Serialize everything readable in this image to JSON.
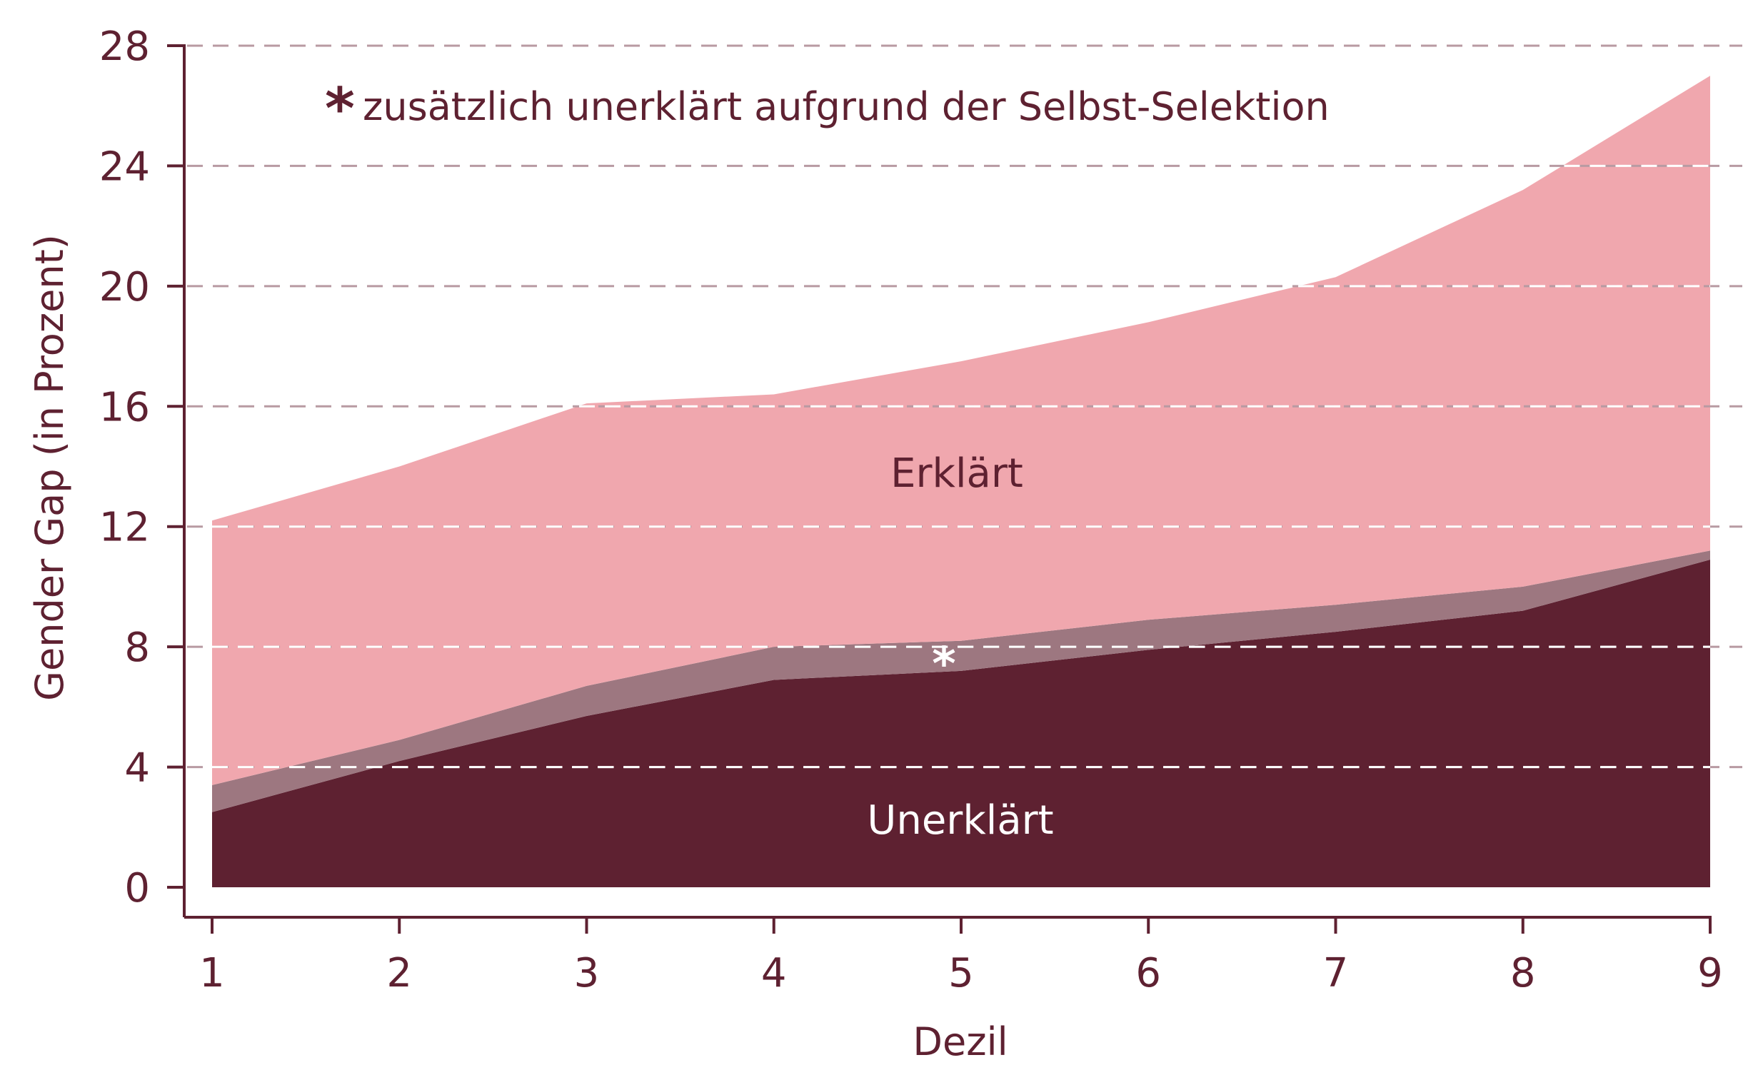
{
  "colors": {
    "dark": "#5e2131",
    "mid": "#9d7780",
    "pink": "#f0a7ae",
    "gridline": "#b89aa2",
    "white": "#ffffff"
  },
  "chart_data": {
    "type": "area",
    "title": "",
    "xlabel": "Dezil",
    "ylabel": "Gender Gap (in Prozent)",
    "x": [
      1,
      2,
      3,
      4,
      5,
      6,
      7,
      8,
      9
    ],
    "xticks": [
      "1",
      "2",
      "3",
      "4",
      "5",
      "6",
      "7",
      "8",
      "9"
    ],
    "yticks": [
      "0",
      "4",
      "8",
      "12",
      "16",
      "20",
      "24",
      "28"
    ],
    "ylim": [
      0,
      28
    ],
    "xlim": [
      1,
      9
    ],
    "grid": "horizontal dashed",
    "stacked": true,
    "series": [
      {
        "name": "Unerklärt",
        "values": [
          2.5,
          4.2,
          5.7,
          6.9,
          7.2,
          7.9,
          8.5,
          9.2,
          10.9
        ]
      },
      {
        "values": [
          0.9,
          0.7,
          1.0,
          1.1,
          1.0,
          1.0,
          0.9,
          0.8,
          0.3
        ]
      },
      {
        "name": "Erklärt",
        "values": [
          8.8,
          9.1,
          9.4,
          8.4,
          9.3,
          9.9,
          10.9,
          13.2,
          15.8
        ]
      }
    ],
    "annotation": {
      "star": "*",
      "text": "zusätzlich unerklärt aufgrund der Selbst-Selektion"
    },
    "area_labels": {
      "erklaert": "Erklärt",
      "unerklaert": "Unerklärt",
      "star": "*"
    }
  }
}
